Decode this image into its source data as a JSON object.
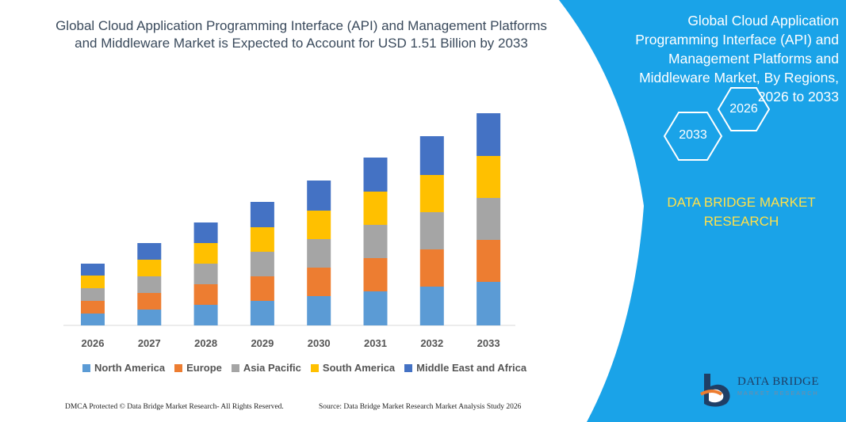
{
  "chart_data": {
    "type": "bar",
    "stacked": true,
    "title": "Global Cloud Application Programming Interface (API) and Management Platforms and Middleware Market is Expected to Account for USD 1.51 Billion by 2033",
    "categories": [
      "2026",
      "2027",
      "2028",
      "2029",
      "2030",
      "2031",
      "2032",
      "2033"
    ],
    "series": [
      {
        "name": "North America",
        "color": "#5b9bd5",
        "values": [
          15,
          20,
          26,
          31,
          37,
          43,
          49,
          55
        ]
      },
      {
        "name": "Europe",
        "color": "#ed7d31",
        "values": [
          16,
          21,
          26,
          31,
          36,
          42,
          47,
          53
        ]
      },
      {
        "name": "Asia Pacific",
        "color": "#a5a5a5",
        "values": [
          16,
          21,
          26,
          31,
          36,
          42,
          47,
          53
        ]
      },
      {
        "name": "South America",
        "color": "#ffc000",
        "values": [
          16,
          21,
          26,
          31,
          36,
          42,
          47,
          53
        ]
      },
      {
        "name": "Middle East and Africa",
        "color": "#4472c4",
        "values": [
          15,
          21,
          26,
          32,
          38,
          43,
          49,
          54
        ]
      }
    ],
    "ylim": [
      0,
      290
    ],
    "grid": false,
    "legend": "bottom"
  },
  "panel": {
    "title": "Global Cloud Application Programming Interface (API) and Management Platforms and Middleware Market, By Regions, 2026 to 2033",
    "hex_2026": "2026",
    "hex_2033": "2033",
    "brand": "DATA BRIDGE MARKET RESEARCH",
    "bg_color": "#1aa3e8"
  },
  "logo": {
    "text": "DATA BRIDGE",
    "sub": "MARKET RESEARCH"
  },
  "footer": {
    "left": "DMCA Protected © Data Bridge Market Research- All Rights Reserved.",
    "right": "Source: Data Bridge Market Research Market Analysis Study 2026"
  }
}
